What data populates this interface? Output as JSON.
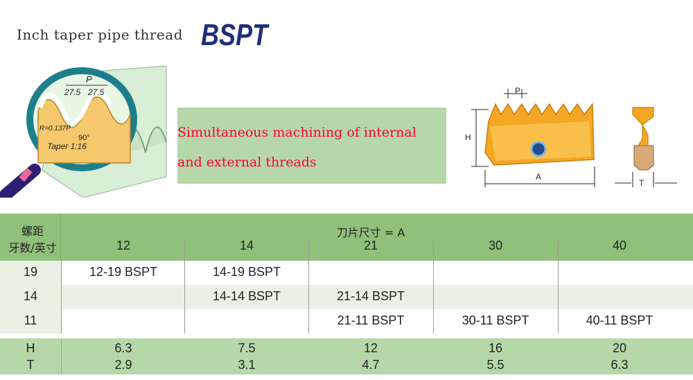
{
  "title": {
    "text": "Inch taper pipe thread",
    "brand": "BSPT"
  },
  "promo": {
    "line1": "Simultaneous machining of internal",
    "line2": "and external threads"
  },
  "figure": {
    "p_label": "P",
    "angle1": "27.5",
    "angle2": "27.5",
    "radius": "R=0.137P",
    "right_angle": "90°",
    "taper": "Taper 1:16"
  },
  "insert_labels": {
    "p": "P",
    "h": "H",
    "a": "A",
    "t": "T"
  },
  "table": {
    "row_header_line1": "螺距",
    "row_header_line2": "牙数/英寸",
    "group_header": "刀片尺寸 = A",
    "columns": [
      "12",
      "14",
      "21",
      "30",
      "40"
    ],
    "rows": [
      {
        "pitch": "19",
        "cells": [
          "12-19 BSPT",
          "14-19 BSPT",
          "",
          "",
          ""
        ]
      },
      {
        "pitch": "14",
        "cells": [
          "",
          "14-14 BSPT",
          "21-14 BSPT",
          "",
          ""
        ]
      },
      {
        "pitch": "11",
        "cells": [
          "",
          "",
          "21-11 BSPT",
          "30-11 BSPT",
          "40-11 BSPT"
        ]
      }
    ],
    "dims": [
      {
        "label": "H",
        "values": [
          "6.3",
          "7.5",
          "12",
          "16",
          "20"
        ]
      },
      {
        "label": "T",
        "values": [
          "2.9",
          "3.1",
          "4.7",
          "5.5",
          "6.3"
        ]
      }
    ]
  }
}
